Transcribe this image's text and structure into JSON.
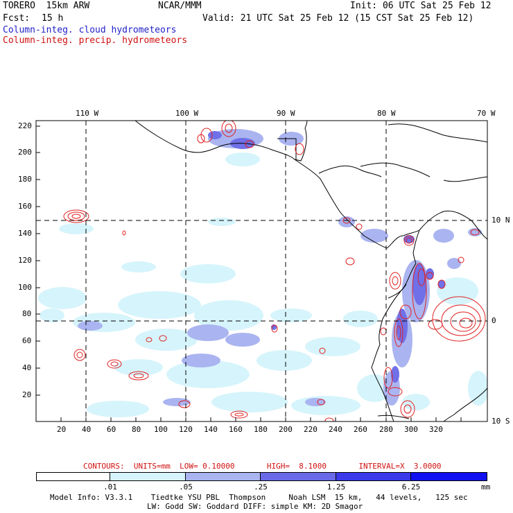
{
  "header": {
    "model": "TORERO  15km ARW",
    "org": "NCAR/MMM",
    "init": "Init: 06 UTC Sat 25 Feb 12",
    "fcst_label": "Fcst:",
    "fcst_value": "15 h",
    "valid": "Valid: 21 UTC Sat 25 Feb 12 (15 CST Sat 25 Feb 12)",
    "field_cloud": "Column-integ. cloud hydrometeors",
    "field_precip": "Column-integ. precip. hydrometeors"
  },
  "map": {
    "top_lon_labels": [
      "110 W",
      "100 W",
      "90 W",
      "80 W",
      "70 W"
    ],
    "right_lat_labels": [
      "10 N",
      "0",
      "10 S"
    ],
    "y_ticks": [
      "220",
      "200",
      "180",
      "160",
      "140",
      "120",
      "100",
      "80",
      "60",
      "40",
      "20"
    ],
    "x_ticks": [
      "20",
      "40",
      "60",
      "80",
      "100",
      "120",
      "140",
      "160",
      "180",
      "200",
      "220",
      "240",
      "260",
      "280",
      "300",
      "320"
    ],
    "colors": {
      "cloud_fill_1": "#d6f4fb",
      "cloud_fill_2": "#aab4f0",
      "cloud_fill_3": "#7070e8",
      "precip_contour": "#e02020",
      "coastline": "#000000"
    }
  },
  "contour_info": {
    "text": "CONTOURS:  UNITS=mm  LOW= 0.10000       HIGH=  8.1000       INTERVAL=X  3.0000"
  },
  "legend": {
    "levels": [
      ".01",
      ".05",
      ".25",
      "1.25",
      "6.25"
    ],
    "units": "mm",
    "colors": [
      "#ffffff",
      "#d6f4fb",
      "#aab4f0",
      "#8890ec",
      "#6060e6",
      "#3838ea",
      "#1010f0"
    ]
  },
  "footer": {
    "line1": "Model Info: V3.3.1    Tiedtke YSU PBL  Thompson     Noah LSM  15 km,   44 levels,   125 sec",
    "line2": "LW: Godd SW: Goddard DIFF: simple KM: 2D Smagor"
  }
}
